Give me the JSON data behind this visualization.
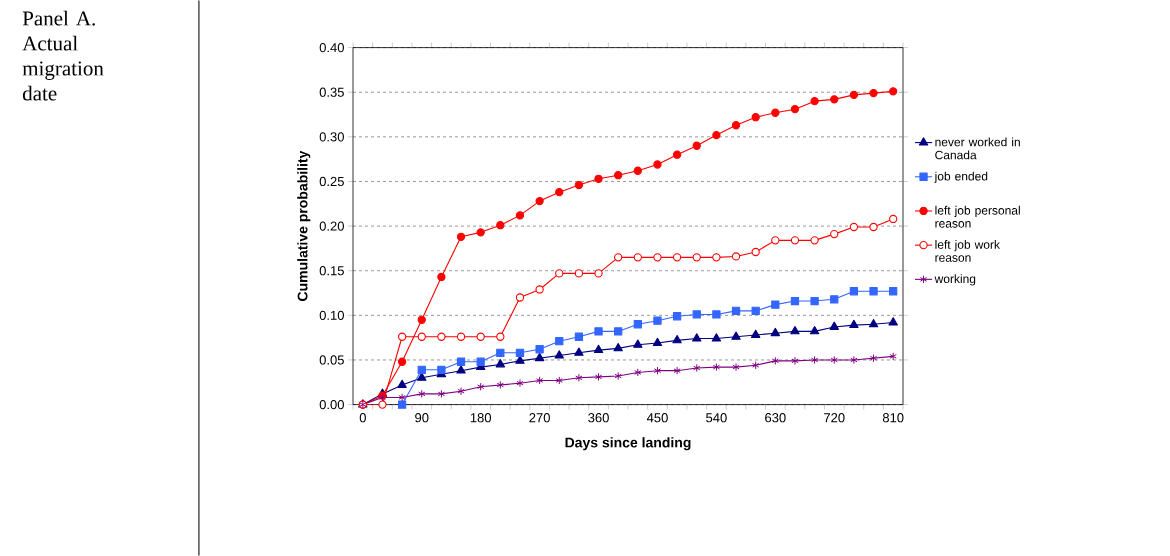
{
  "chart_data": {
    "type": "line",
    "title": "Panel A. Actual migration date",
    "xlabel": "Days since landing",
    "ylabel": "Cumulative probability",
    "categories": [
      "0",
      null,
      null,
      "90",
      null,
      null,
      "180",
      null,
      null,
      "270",
      null,
      null,
      "360",
      null,
      null,
      "450",
      null,
      null,
      "540",
      null,
      null,
      "630",
      null,
      null,
      "720",
      null,
      null,
      "810"
    ],
    "series": [
      {
        "name": "never worked in Canada",
        "color": "#000080",
        "marker": "triangle",
        "values": [
          0,
          0.012,
          0.022,
          0.03,
          0.034,
          0.038,
          0.042,
          0.045,
          0.049,
          0.052,
          0.055,
          0.058,
          0.061,
          0.063,
          0.067,
          0.069,
          0.072,
          0.074,
          0.074,
          0.076,
          0.078,
          0.08,
          0.082,
          0.082,
          0.087,
          0.089,
          0.09,
          0.092
        ]
      },
      {
        "name": "job ended",
        "color": "#3366ff",
        "marker": "square",
        "values": [
          null,
          null,
          0,
          0.039,
          0.039,
          0.048,
          0.048,
          0.058,
          0.058,
          0.062,
          0.071,
          0.076,
          0.082,
          0.082,
          0.09,
          0.094,
          0.099,
          0.101,
          0.101,
          0.105,
          0.105,
          0.112,
          0.116,
          0.116,
          0.118,
          0.127,
          0.127,
          0.127
        ]
      },
      {
        "name": "left job personal reason",
        "color": "#ff0000",
        "marker": "circle",
        "values": [
          0,
          0.01,
          0.048,
          0.095,
          0.143,
          0.188,
          0.193,
          0.201,
          0.212,
          0.228,
          0.238,
          0.246,
          0.253,
          0.257,
          0.262,
          0.269,
          0.28,
          0.29,
          0.302,
          0.313,
          0.322,
          0.327,
          0.331,
          0.34,
          0.342,
          0.347,
          0.349,
          0.351
        ]
      },
      {
        "name": "left job work reason",
        "color": "#ff0000",
        "marker": "circle",
        "values": [
          0,
          0,
          0.076,
          0.076,
          0.076,
          0.076,
          0.076,
          0.076,
          0.12,
          0.129,
          0.147,
          0.147,
          0.147,
          0.165,
          0.165,
          0.165,
          0.165,
          0.165,
          0.165,
          0.166,
          0.171,
          0.184,
          0.184,
          0.184,
          0.191,
          0.199,
          0.199,
          0.208
        ]
      },
      {
        "name": "working",
        "color": "#800080",
        "marker": "cross",
        "values": [
          0,
          0.008,
          0.008,
          0.012,
          0.012,
          0.015,
          0.02,
          0.022,
          0.024,
          0.027,
          0.027,
          0.03,
          0.031,
          0.032,
          0.036,
          0.038,
          0.038,
          0.041,
          0.042,
          0.042,
          0.044,
          0.049,
          0.049,
          0.05,
          0.05,
          0.05,
          0.052,
          0.054
        ]
      }
    ],
    "ylim": [
      0,
      0.4
    ],
    "yticks": [
      {
        "value": 0,
        "label": "0.00"
      },
      {
        "value": 0.05,
        "label": "0.05"
      },
      {
        "value": 0.1,
        "label": "0.10"
      },
      {
        "value": 0.15,
        "label": "0.15"
      },
      {
        "value": 0.2,
        "label": "0.20"
      },
      {
        "value": 0.25,
        "label": "0.25"
      },
      {
        "value": 0.3,
        "label": "0.30"
      },
      {
        "value": 0.35,
        "label": "0.35"
      },
      {
        "value": 0.4,
        "label": "0.40"
      }
    ],
    "grid": "y",
    "legend": "right",
    "line_style": "solid"
  }
}
